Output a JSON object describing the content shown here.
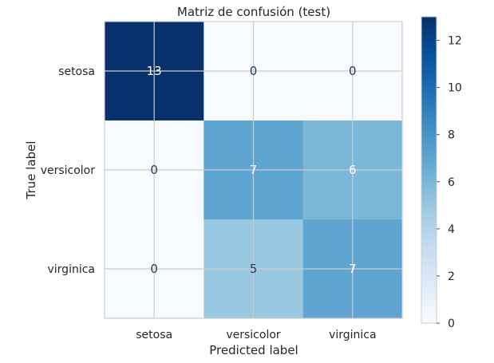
{
  "chart_data": {
    "type": "heatmap",
    "title": "Matriz de confusión (test)",
    "xlabel": "Predicted label",
    "ylabel": "True label",
    "x_categories": [
      "setosa",
      "versicolor",
      "virginica"
    ],
    "y_categories": [
      "setosa",
      "versicolor",
      "virginica"
    ],
    "values": [
      [
        13,
        0,
        0
      ],
      [
        0,
        7,
        6
      ],
      [
        0,
        5,
        7
      ]
    ],
    "colorbar": {
      "colormap": "Blues",
      "range": [
        0,
        13
      ],
      "ticks": [
        "0",
        "2",
        "4",
        "6",
        "8",
        "10",
        "12"
      ]
    },
    "grid": true
  }
}
